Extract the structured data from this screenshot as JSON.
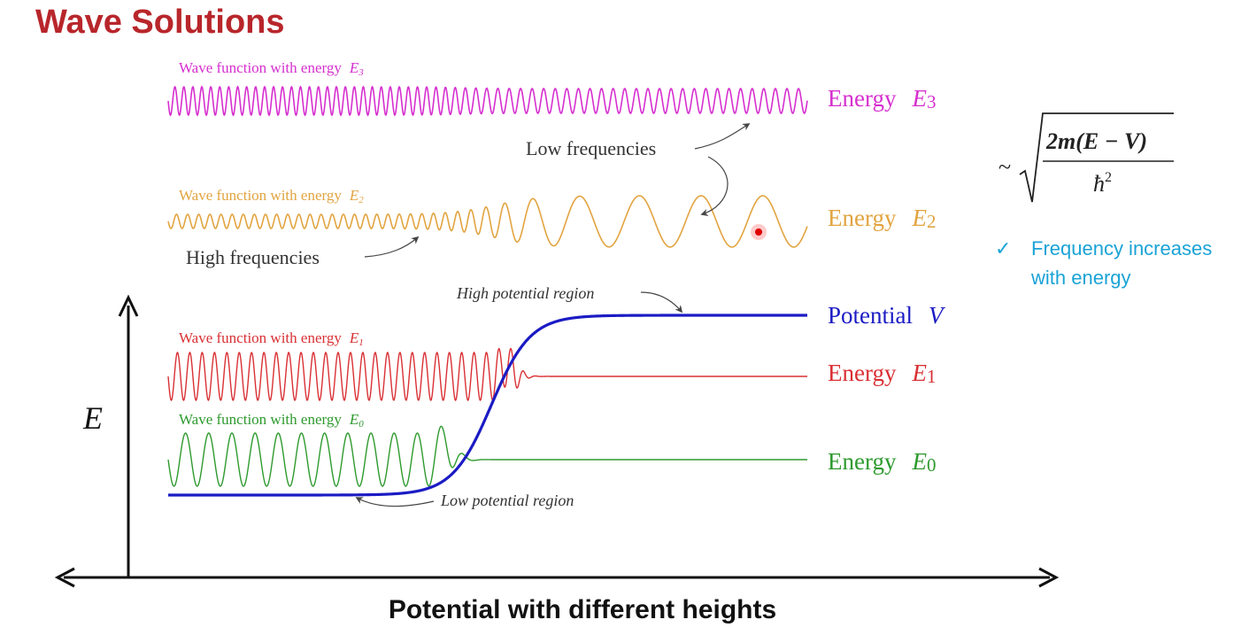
{
  "title": "Wave Solutions",
  "axis_title": "Potential with different heights",
  "axis_symbol": "E",
  "colors": {
    "title": "#b8262b",
    "e3": "#d62fcf",
    "e2": "#e2a440",
    "e1": "#d93034",
    "e0": "#2e9a2e",
    "potential": "#1b1bc4",
    "note": "#1aa3d6"
  },
  "waves": [
    {
      "label": "Wave function with energy",
      "sym": "E",
      "sub": "3",
      "right_label": "Energy",
      "color_key": "e3"
    },
    {
      "label": "Wave function with energy",
      "sym": "E",
      "sub": "2",
      "right_label": "Energy",
      "color_key": "e2"
    },
    {
      "label": "Wave function with energy",
      "sym": "E",
      "sub": "1",
      "right_label": "Energy",
      "color_key": "e1"
    },
    {
      "label": "Wave function with energy",
      "sym": "E",
      "sub": "0",
      "right_label": "Energy",
      "color_key": "e0"
    }
  ],
  "potential": {
    "right_label": "Potential",
    "sym": "V"
  },
  "annotations": {
    "low_frequencies": "Low frequencies",
    "high_frequencies": "High frequencies",
    "high_potential_region": "High potential region",
    "low_potential_region": "Low potential region"
  },
  "formula": {
    "tilde": "~",
    "numerator": "2m(E − V)",
    "denominator": "ħ",
    "denominator_power": "2"
  },
  "note": {
    "check_icon": "check-icon",
    "line1": "Frequency increases",
    "line2": "with energy"
  }
}
